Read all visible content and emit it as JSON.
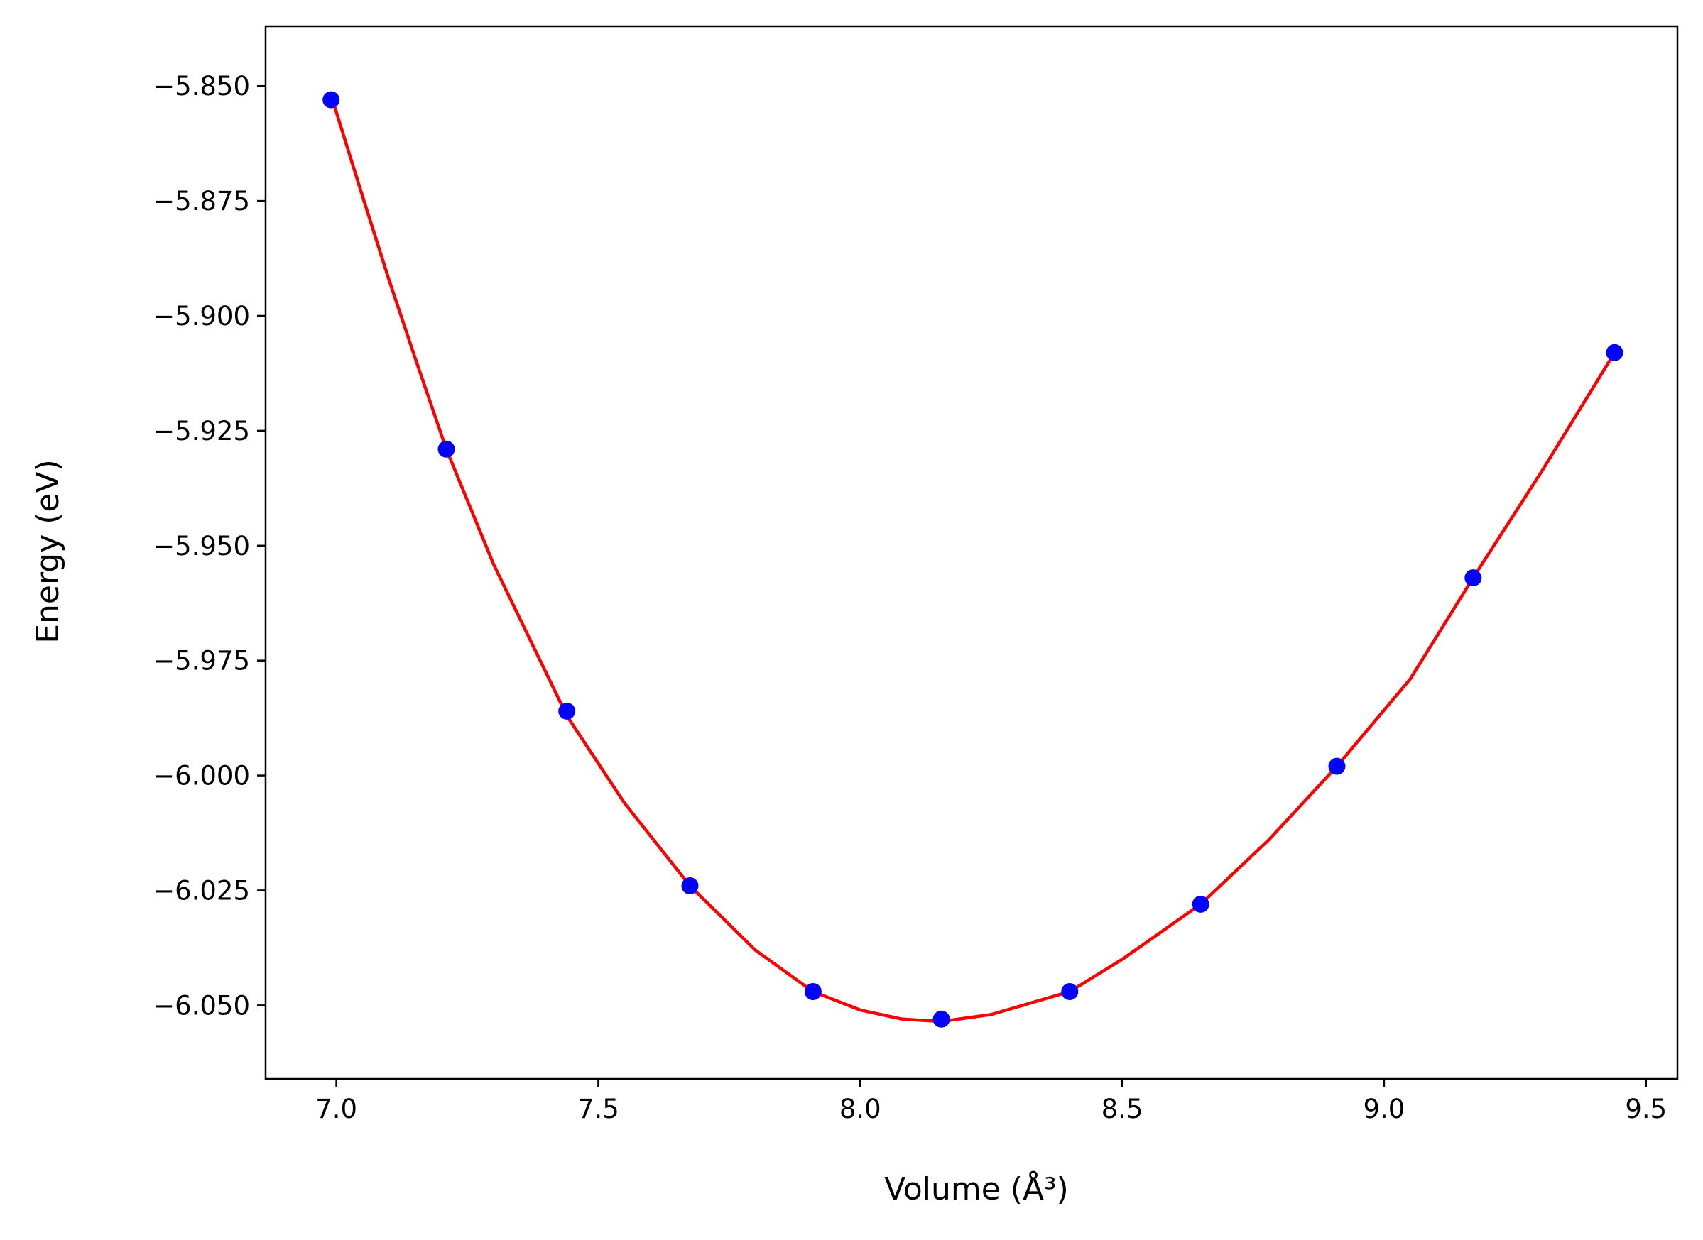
{
  "chart_data": {
    "type": "line",
    "xlabel": "Volume (Å³)",
    "ylabel": "Energy (eV)",
    "xlim": [
      6.865,
      9.56
    ],
    "ylim": [
      -6.066,
      -5.837
    ],
    "x_ticks": [
      7.0,
      7.5,
      8.0,
      8.5,
      9.0,
      9.5
    ],
    "x_tick_labels": [
      "7.0",
      "7.5",
      "8.0",
      "8.5",
      "9.0",
      "9.5"
    ],
    "y_ticks": [
      -5.85,
      -5.875,
      -5.9,
      -5.925,
      -5.95,
      -5.975,
      -6.0,
      -6.025,
      -6.05
    ],
    "y_tick_labels": [
      "−5.850",
      "−5.875",
      "−5.900",
      "−5.925",
      "−5.950",
      "−5.975",
      "−6.000",
      "−6.025",
      "−6.050"
    ],
    "grid": false,
    "colors": {
      "points": "#0000ff",
      "fit": "#ff0000",
      "axes": "#000000"
    },
    "series": [
      {
        "type": "scatter",
        "marker": "circle",
        "x": [
          6.99,
          7.21,
          7.44,
          7.675,
          7.91,
          8.155,
          8.4,
          8.65,
          8.91,
          9.17,
          9.44
        ],
        "y": [
          -5.853,
          -5.929,
          -5.986,
          -6.024,
          -6.047,
          -6.053,
          -6.047,
          -6.028,
          -5.998,
          -5.957,
          -5.908
        ]
      },
      {
        "type": "line",
        "x": [
          6.99,
          7.05,
          7.1,
          7.15,
          7.21,
          7.3,
          7.44,
          7.55,
          7.675,
          7.8,
          7.91,
          8.0,
          8.08,
          8.155,
          8.25,
          8.4,
          8.5,
          8.65,
          8.78,
          8.91,
          9.05,
          9.17,
          9.3,
          9.44
        ],
        "y": [
          -5.852,
          -5.874,
          -5.892,
          -5.909,
          -5.929,
          -5.954,
          -5.987,
          -6.006,
          -6.024,
          -6.038,
          -6.047,
          -6.051,
          -6.053,
          -6.0535,
          -6.052,
          -6.047,
          -6.04,
          -6.028,
          -6.014,
          -5.998,
          -5.979,
          -5.957,
          -5.934,
          -5.908
        ]
      }
    ]
  }
}
